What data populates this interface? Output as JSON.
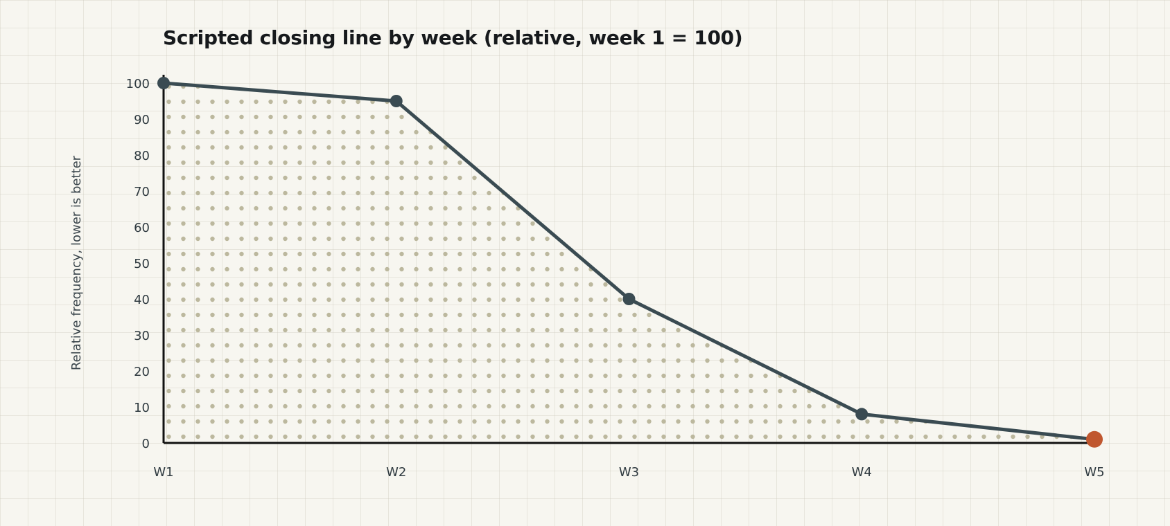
{
  "chart_data": {
    "type": "area",
    "title": "Scripted closing line by week (relative, week 1 = 100)",
    "ylabel": "Relative frequency, lower is better",
    "xlabel": "",
    "categories": [
      "W1",
      "W2",
      "W3",
      "W4",
      "W5"
    ],
    "series": [
      {
        "values": [
          100,
          95,
          40,
          8,
          1
        ]
      }
    ],
    "ylim": [
      0,
      100
    ],
    "yticks": [
      0,
      10,
      20,
      30,
      40,
      50,
      60,
      70,
      80,
      90,
      100
    ],
    "highlight_index": 4,
    "grid": true,
    "colors": {
      "line": "#3a4b52",
      "point": "#3a4b52",
      "highlight": "#c0572f",
      "fill_dots": "#bcb89e",
      "axis": "#111111"
    }
  }
}
